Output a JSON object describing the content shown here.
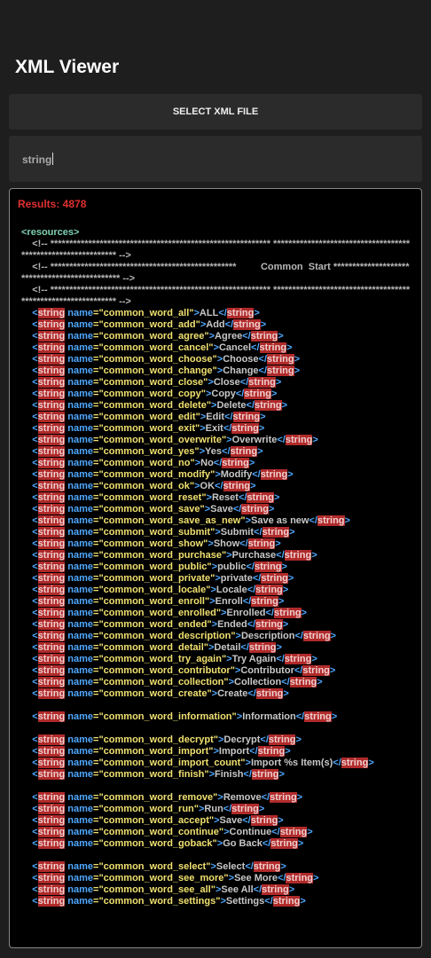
{
  "header": {
    "title": "XML Viewer"
  },
  "button": {
    "label": "SELECT XML FILE"
  },
  "search": {
    "query": "string"
  },
  "results": {
    "label": "Results: 4878"
  },
  "xml": {
    "header": [
      "<resources>",
      "    <!-- ********************************************************** ************************************************************* -->",
      "    <!-- *************************************************         Common  Start ********************************************** -->",
      "    <!-- ********************************************************** ************************************************************* -->"
    ],
    "groups": [
      [
        "    <string name=\"common_word_all\">ALL</string>",
        "    <string name=\"common_word_add\">Add</string>",
        "    <string name=\"common_word_agree\">Agree</string>",
        "    <string name=\"common_word_cancel\">Cancel</string>",
        "    <string name=\"common_word_choose\">Choose</string>",
        "    <string name=\"common_word_change\">Change</string>",
        "    <string name=\"common_word_close\">Close</string>",
        "    <string name=\"common_word_copy\">Copy</string>",
        "    <string name=\"common_word_delete\">Delete</string>",
        "    <string name=\"common_word_edit\">Edit</string>",
        "    <string name=\"common_word_exit\">Exit</string>",
        "    <string name=\"common_word_overwrite\">Overwrite</string>",
        "    <string name=\"common_word_yes\">Yes</string>",
        "    <string name=\"common_word_no\">No</string>",
        "    <string name=\"common_word_modify\">Modify</string>",
        "    <string name=\"common_word_ok\">OK</string>",
        "    <string name=\"common_word_reset\">Reset</string>",
        "    <string name=\"common_word_save\">Save</string>",
        "    <string name=\"common_word_save_as_new\">Save as new</string>",
        "    <string name=\"common_word_submit\">Submit</string>",
        "    <string name=\"common_word_show\">Show</string>",
        "    <string name=\"common_word_purchase\">Purchase</string>",
        "    <string name=\"common_word_public\">public</string>",
        "    <string name=\"common_word_private\">private</string>",
        "    <string name=\"common_word_locale\">Locale</string>",
        "    <string name=\"common_word_enroll\">Enroll</string>",
        "    <string name=\"common_word_enrolled\">Enrolled</string>",
        "    <string name=\"common_word_ended\">Ended</string>",
        "    <string name=\"common_word_description\">Description</string>",
        "    <string name=\"common_word_detail\">Detail</string>",
        "    <string name=\"common_word_try_again\">Try Again</string>",
        "    <string name=\"common_word_contributor\">Contributor</string>",
        "    <string name=\"common_word_collection\">Collection</string>",
        "    <string name=\"common_word_create\">Create</string>"
      ],
      [
        "    <string name=\"common_word_information\">Information</string>"
      ],
      [
        "    <string name=\"common_word_decrypt\">Decrypt</string>",
        "    <string name=\"common_word_import\">Import</string>",
        "    <string name=\"common_word_import_count\">Import %s Item(s)</string>",
        "    <string name=\"common_word_finish\">Finish</string>"
      ],
      [
        "    <string name=\"common_word_remove\">Remove</string>",
        "    <string name=\"common_word_run\">Run</string>",
        "    <string name=\"common_word_accept\">Save</string>",
        "    <string name=\"common_word_continue\">Continue</string>",
        "    <string name=\"common_word_goback\">Go Back</string>"
      ],
      [
        "    <string name=\"common_word_select\">Select</string>",
        "    <string name=\"common_word_see_more\">See More</string>",
        "    <string name=\"common_word_see_all\">See All</string>",
        "    <string name=\"common_word_settings\">Settings</string>"
      ]
    ]
  }
}
